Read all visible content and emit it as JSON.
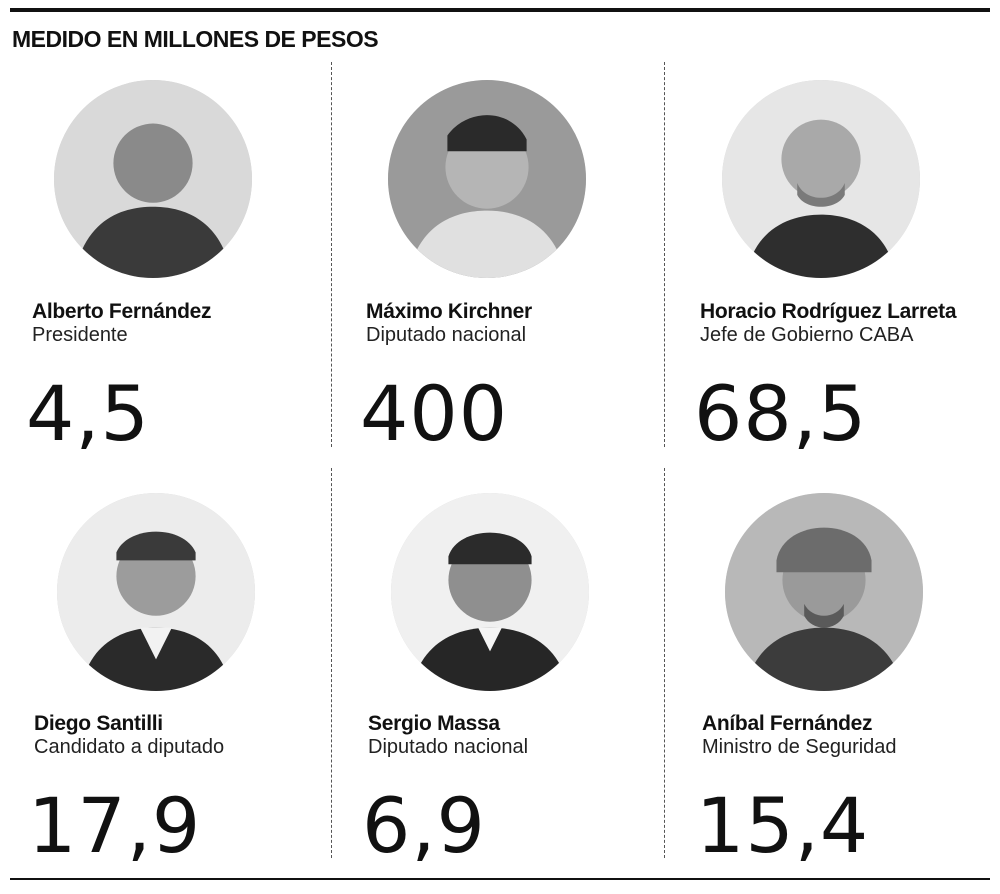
{
  "heading": "MEDIDO EN MILLONES DE PESOS",
  "people": [
    {
      "name": "Alberto Fernández",
      "role": "Presidente",
      "value": "4,5",
      "photo_icon": "portrait-icon"
    },
    {
      "name": "Máximo Kirchner",
      "role": "Diputado nacional",
      "value": "400",
      "photo_icon": "portrait-icon"
    },
    {
      "name": "Horacio Rodríguez Larreta",
      "role": "Jefe de Gobierno CABA",
      "value": "68,5",
      "photo_icon": "portrait-icon"
    },
    {
      "name": "Diego Santilli",
      "role": "Candidato a diputado",
      "value": "17,9",
      "photo_icon": "portrait-icon"
    },
    {
      "name": "Sergio Massa",
      "role": "Diputado nacional",
      "value": "6,9",
      "photo_icon": "portrait-icon"
    },
    {
      "name": "Aníbal Fernández",
      "role": "Ministro de Seguridad",
      "value": "15,4",
      "photo_icon": "portrait-icon"
    }
  ]
}
